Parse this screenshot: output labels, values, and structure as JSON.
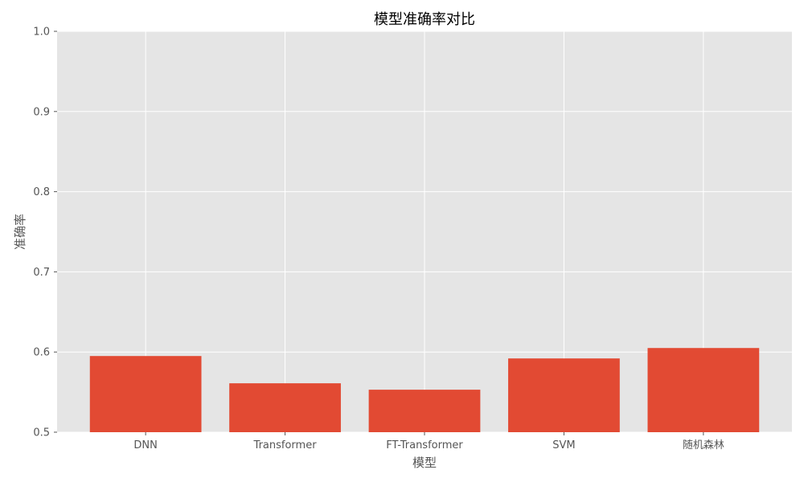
{
  "chart_data": {
    "type": "bar",
    "title": "模型准确率对比",
    "xlabel": "模型",
    "ylabel": "准确率",
    "categories": [
      "DNN",
      "Transformer",
      "FT-Transformer",
      "SVM",
      "随机森林"
    ],
    "values": [
      0.595,
      0.561,
      0.553,
      0.592,
      0.605
    ],
    "ylim": [
      0.5,
      1.0
    ],
    "yticks": [
      "0.5",
      "0.6",
      "0.7",
      "0.8",
      "0.9",
      "1.0"
    ],
    "grid": true,
    "legend": "none"
  },
  "colors": {
    "bar": "#E24A33",
    "plot_background": "#E5E5E5",
    "grid": "#FFFFFF"
  }
}
